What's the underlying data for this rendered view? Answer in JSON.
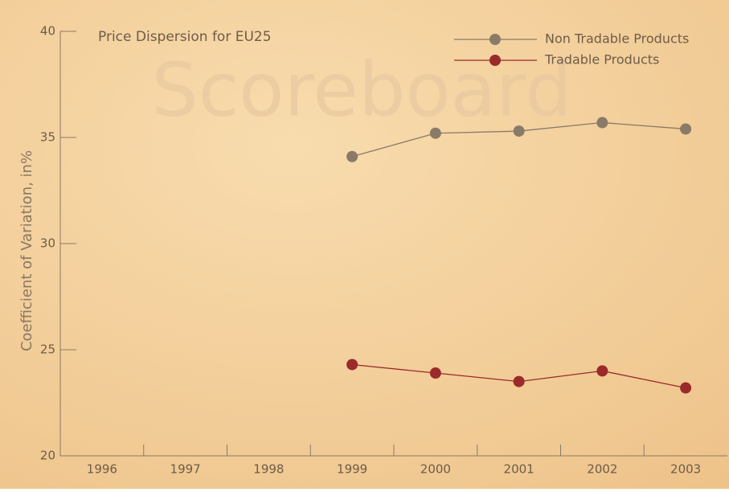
{
  "chart_data": {
    "type": "line",
    "title": "Price Dispersion for EU25",
    "watermark": "Scoreboard",
    "y_label": "Coefficient of Variation, in%",
    "categories": [
      "1996",
      "1997",
      "1998",
      "1999",
      "2000",
      "2001",
      "2002",
      "2003"
    ],
    "series": [
      {
        "name": "Non Tradable Products",
        "color": "#8a7a68",
        "values": [
          null,
          null,
          null,
          34.1,
          35.2,
          35.3,
          35.7,
          35.4
        ]
      },
      {
        "name": "Tradable Products",
        "color": "#9b2a2a",
        "values": [
          null,
          null,
          null,
          24.3,
          23.9,
          23.5,
          24.0,
          23.2
        ]
      }
    ],
    "ylim": [
      20,
      40
    ],
    "yticks": [
      20,
      25,
      30,
      35,
      40
    ],
    "grid": false,
    "legend": "top-right"
  }
}
